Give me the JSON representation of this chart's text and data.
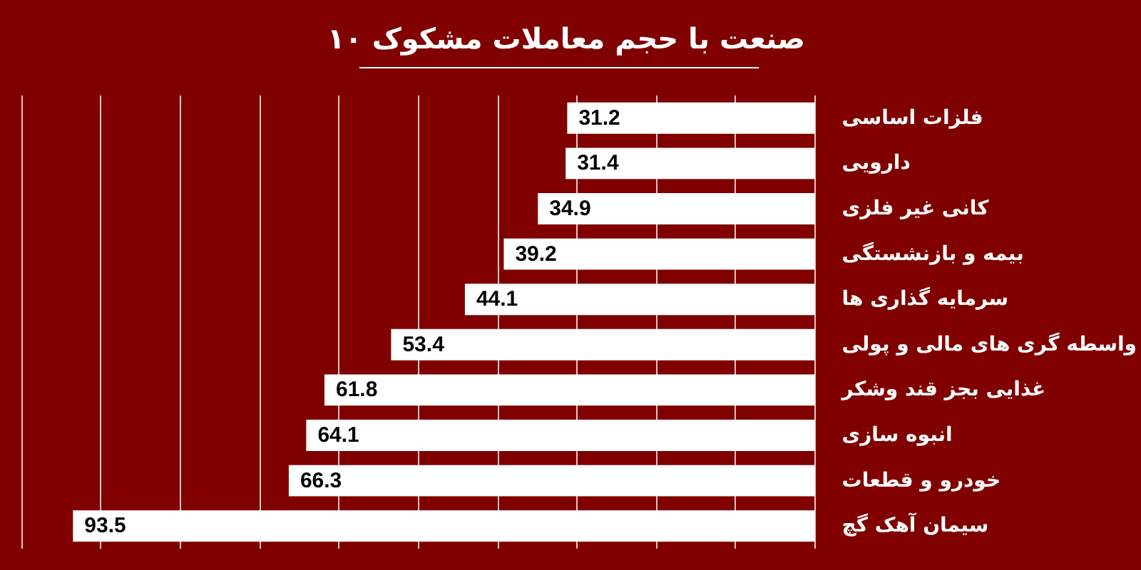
{
  "chart_data": {
    "type": "bar",
    "orientation": "horizontal",
    "title": "۱۰ صنعت با حجم معاملات مشکوک",
    "categories": [
      "فلزات اساسی",
      "دارویی",
      "کانی غیر فلزی",
      "بیمه و بازنشستگی",
      "سرمایه گذاری ها",
      "واسطه گری های مالی و پولی",
      "غذایی بجز قند وشکر",
      "انبوه سازی",
      "خودرو و قطعات",
      "سیمان آهک گچ"
    ],
    "values": [
      31.2,
      31.4,
      34.9,
      39.2,
      44.1,
      53.4,
      61.8,
      64.1,
      66.3,
      93.5
    ],
    "color": "#ffffff",
    "xlim": [
      100,
      0
    ],
    "xticks": [
      {
        "value": 0,
        "label": null
      },
      {
        "value": 10,
        "label": null
      },
      {
        "value": 20,
        "label": null
      },
      {
        "value": 30,
        "label": null
      },
      {
        "value": 40,
        "label": null
      },
      {
        "value": 50,
        "label": null
      },
      {
        "value": 60,
        "label": null
      },
      {
        "value": 70,
        "label": null
      },
      {
        "value": 80,
        "label": null
      },
      {
        "value": 90,
        "label": null
      },
      {
        "value": 100,
        "label": null
      }
    ],
    "grid": "x",
    "tick_labels": "y",
    "data_labels": true
  }
}
